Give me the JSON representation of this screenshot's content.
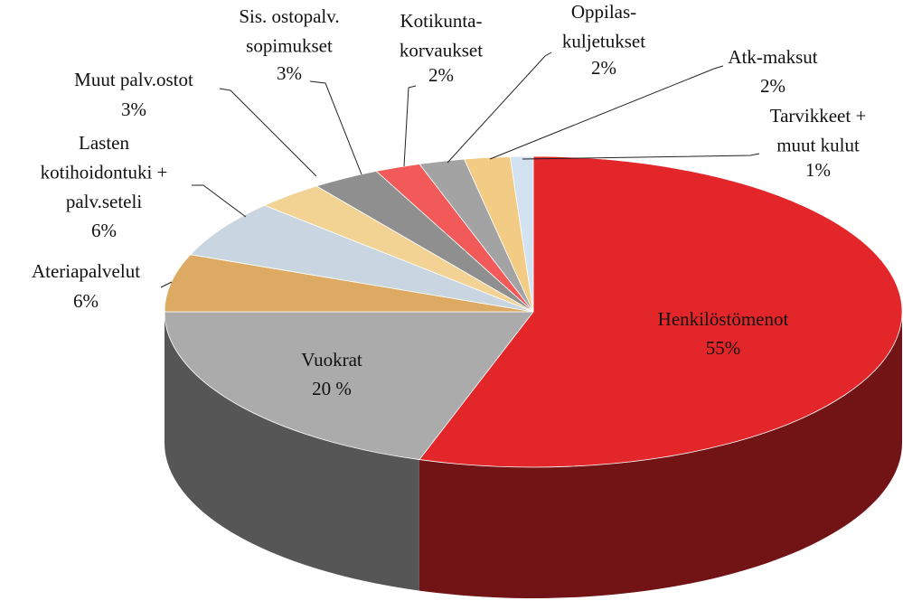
{
  "chart_data": {
    "type": "pie",
    "categories": [
      "Henkilöstömenot",
      "Vuokrat",
      "Ateriapalvelut",
      "Lasten\nkotihoidontuki +\npalv.seteli",
      "Muut palv.ostot",
      "Sis. ostopalv.\nsopimukset",
      "Kotikunta-\nkorvaukset",
      "Oppilas-\nkuljetukset",
      "Atk-maksut",
      "Tarvikkeet +\nmuut kulut"
    ],
    "values": [
      55,
      20,
      6,
      6,
      3,
      3,
      2,
      2,
      2,
      1
    ],
    "value_labels": [
      "55%",
      "20 %",
      "6%",
      "6%",
      "3%",
      "3%",
      "2%",
      "2%",
      "2%",
      "1%"
    ],
    "colors": [
      "#e3262a",
      "#ababab",
      "#dcaa62",
      "#c9d5e1",
      "#f2d394",
      "#8f8f8f",
      "#f25a5a",
      "#a3a3a3",
      "#f2cb85",
      "#d3e2f1"
    ]
  }
}
